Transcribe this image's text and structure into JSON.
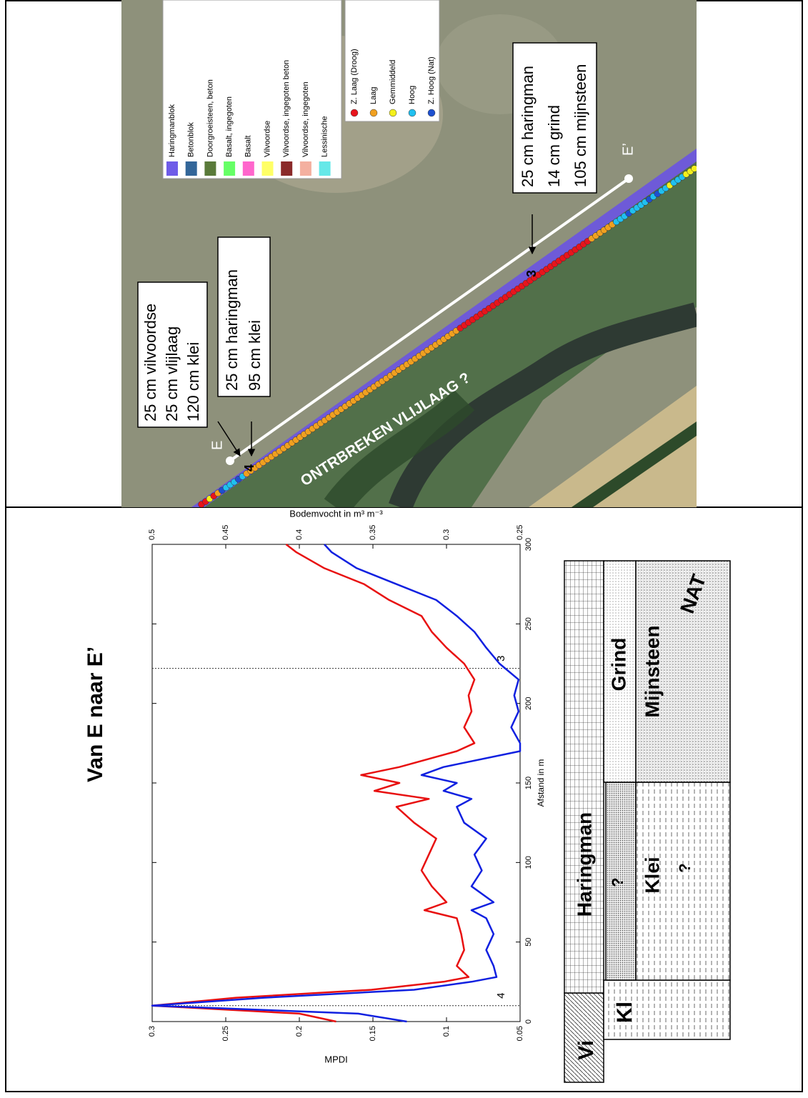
{
  "map": {
    "legend_materials": [
      {
        "label": "Haringmanblok",
        "color": "#6f5ce8"
      },
      {
        "label": "Betonblok",
        "color": "#336699"
      },
      {
        "label": "Doorgroeisteen, beton",
        "color": "#5a7a3a"
      },
      {
        "label": "Basalt, ingegoten",
        "color": "#66ff66"
      },
      {
        "label": "Basalt",
        "color": "#ff66cc"
      },
      {
        "label": "Vilvoordse",
        "color": "#ffff66"
      },
      {
        "label": "Vilvoordse, ingegoten beton",
        "color": "#8b2a2a"
      },
      {
        "label": "Vilvoordse, ingegoten",
        "color": "#f4b0a0"
      },
      {
        "label": "Lessinische",
        "color": "#66e8e8"
      }
    ],
    "legend_moisture": [
      {
        "label": "Z. Laag (Droog)",
        "color": "#e8141c"
      },
      {
        "label": "Laag",
        "color": "#f0a020"
      },
      {
        "label": "Gemmiddeld",
        "color": "#f4f01c"
      },
      {
        "label": "Hoog",
        "color": "#20c0f0"
      },
      {
        "label": "Z. Hoog (Nat)",
        "color": "#1e50d0"
      }
    ],
    "boxes": [
      [
        "25 cm vilvoordse",
        "25 cm vlijlaag",
        "120 cm klei"
      ],
      [
        "25 cm haringman",
        "95 cm klei"
      ],
      [
        "25 cm haringman",
        "14 cm grind",
        "105 cm mijnsteen"
      ]
    ],
    "point_labels": [
      "E",
      "E’"
    ],
    "markers": [
      "4",
      "3"
    ],
    "overlay": "ONTRBREKEN VLIJLAAG ?"
  },
  "chart_data": {
    "type": "line",
    "title": "Van E naar E’",
    "x_label": "Afstand in m",
    "y_label": "MPDI",
    "y2_label": "Bodemvocht in m³ m⁻³",
    "x": [
      0,
      5,
      10,
      15,
      20,
      25,
      28,
      35,
      45,
      55,
      65,
      70,
      75,
      85,
      95,
      105,
      115,
      125,
      135,
      140,
      145,
      150,
      155,
      160,
      170,
      175,
      185,
      195,
      205,
      215,
      225,
      235,
      245,
      255,
      265,
      275,
      285,
      295,
      300
    ],
    "series": [
      {
        "color": "#e81010",
        "values": [
          0.175,
          0.2,
          0.3,
          0.243,
          0.151,
          0.102,
          0.085,
          0.093,
          0.088,
          0.09,
          0.093,
          0.115,
          0.1,
          0.11,
          0.117,
          0.112,
          0.107,
          0.122,
          0.134,
          0.112,
          0.149,
          0.132,
          0.158,
          0.132,
          0.093,
          0.081,
          0.088,
          0.083,
          0.085,
          0.081,
          0.088,
          0.1,
          0.11,
          0.117,
          0.139,
          0.156,
          0.183,
          0.202,
          0.209
        ]
      },
      {
        "color": "#1020e0",
        "axis": "y2",
        "values": [
          0.327,
          0.36,
          0.5,
          0.424,
          0.322,
          0.283,
          0.266,
          0.268,
          0.273,
          0.268,
          0.273,
          0.283,
          0.268,
          0.283,
          0.276,
          0.281,
          0.273,
          0.288,
          0.293,
          0.283,
          0.302,
          0.293,
          0.317,
          0.302,
          0.25,
          0.25,
          0.256,
          0.251,
          0.254,
          0.251,
          0.264,
          0.273,
          0.281,
          0.293,
          0.307,
          0.334,
          0.361,
          0.378,
          0.383
        ]
      }
    ],
    "xlim": [
      0,
      300
    ],
    "xticks": [
      0,
      50,
      100,
      150,
      200,
      250,
      300
    ],
    "ylim": [
      0.05,
      0.3
    ],
    "yticks": [
      0.05,
      0.1,
      0.15,
      0.2,
      0.25,
      0.3
    ],
    "y2lim": [
      0.25,
      0.5
    ],
    "y2ticks": [
      0.25,
      0.3,
      0.35,
      0.4,
      0.45,
      0.5
    ],
    "annotations": [
      {
        "x": 10,
        "label": "4"
      },
      {
        "x": 222,
        "label": "3"
      }
    ]
  },
  "profile": {
    "layers": [
      "Vi",
      "Haringman",
      "Kl",
      "?",
      "Klei",
      "?",
      "Grind",
      "Mijnsteen",
      "NAT"
    ]
  }
}
